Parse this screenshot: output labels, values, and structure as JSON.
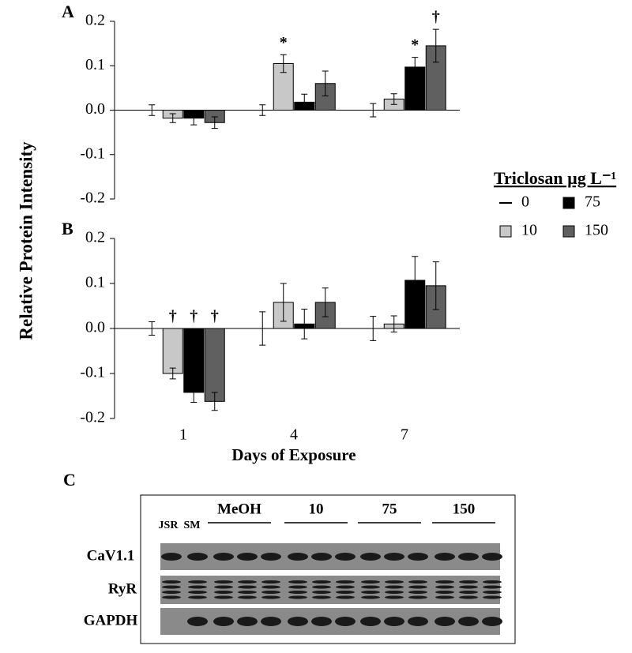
{
  "figure": {
    "y_label": "Relative Protein Intensity",
    "legend_title": "Triclosan µg L⁻¹"
  },
  "chart_data": [
    {
      "type": "bar",
      "panel_label": "A",
      "categories": [
        null,
        null,
        null
      ],
      "series": [
        {
          "name": "0",
          "color": "#ffffff",
          "values": [
            0,
            0,
            0
          ],
          "errors": [
            0.012,
            0.012,
            0.015
          ]
        },
        {
          "name": "10",
          "color": "#c8c8c8",
          "values": [
            -0.018,
            0.105,
            0.025
          ],
          "errors": [
            0.01,
            0.02,
            0.012
          ]
        },
        {
          "name": "75",
          "color": "#000000",
          "values": [
            -0.018,
            0.018,
            0.097
          ],
          "errors": [
            0.015,
            0.018,
            0.022
          ]
        },
        {
          "name": "150",
          "color": "#606060",
          "values": [
            -0.028,
            0.06,
            0.145
          ],
          "errors": [
            0.013,
            0.028,
            0.037
          ]
        }
      ],
      "ylim": [
        -0.2,
        0.2
      ],
      "yticks": [
        -0.2,
        -0.1,
        {
          "value": 0,
          "label": "0.0"
        },
        0.1,
        0.2
      ],
      "annotations": [
        {
          "series": 1,
          "category": 1,
          "text": "*"
        },
        {
          "series": 2,
          "category": 2,
          "text": "*"
        },
        {
          "series": 3,
          "category": 2,
          "text": "†"
        }
      ]
    },
    {
      "type": "bar",
      "panel_label": "B",
      "x_label": "Days of Exposure",
      "categories": [
        "1",
        "4",
        "7"
      ],
      "series": [
        {
          "name": "0",
          "color": "#ffffff",
          "values": [
            0,
            0,
            0
          ],
          "errors": [
            0.015,
            0.037,
            0.027
          ]
        },
        {
          "name": "10",
          "color": "#c8c8c8",
          "values": [
            -0.1,
            0.058,
            0.01
          ],
          "errors": [
            0.012,
            0.042,
            0.018
          ]
        },
        {
          "name": "75",
          "color": "#000000",
          "values": [
            -0.142,
            0.01,
            0.107
          ],
          "errors": [
            0.022,
            0.033,
            0.053
          ]
        },
        {
          "name": "150",
          "color": "#606060",
          "values": [
            -0.162,
            0.058,
            0.095
          ],
          "errors": [
            0.02,
            0.032,
            0.053
          ]
        }
      ],
      "ylim": [
        -0.2,
        0.2
      ],
      "yticks": [
        -0.2,
        -0.1,
        {
          "value": 0,
          "label": "0.0"
        },
        0.1,
        0.2
      ],
      "annotations": [
        {
          "series": 1,
          "category": 0,
          "text": "†"
        },
        {
          "series": 2,
          "category": 0,
          "text": "†"
        },
        {
          "series": 3,
          "category": 0,
          "text": "†"
        }
      ]
    }
  ],
  "blot": {
    "panel_label": "C",
    "lanes_top": [
      "JSR",
      "SM"
    ],
    "groups": [
      "MeOH",
      "10",
      "75",
      "150"
    ],
    "rows": [
      "CaV1.1",
      "RyR",
      "GAPDH"
    ]
  }
}
